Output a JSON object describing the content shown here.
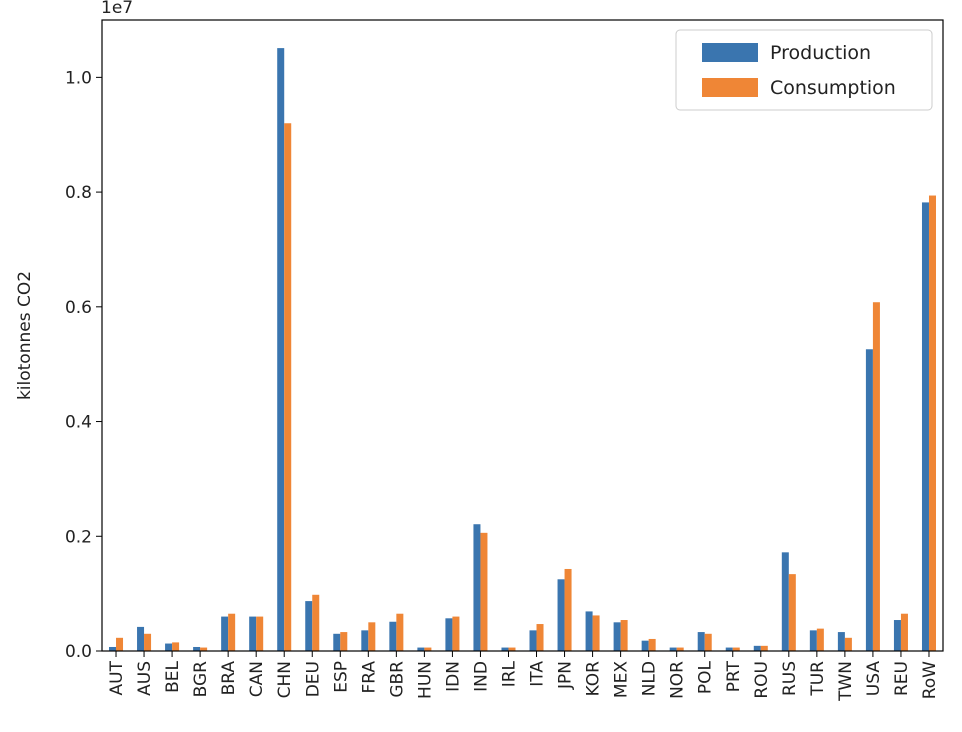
{
  "chart_data": {
    "type": "bar",
    "title": "",
    "xlabel": "",
    "ylabel": "kilotonnes CO2",
    "y_offset_label": "1e7",
    "ylim": [
      0,
      1.1
    ],
    "yticks": [
      "0.0",
      "0.2",
      "0.4",
      "0.6",
      "0.8",
      "1.0"
    ],
    "legend_position": "top-right",
    "grid": false,
    "categories": [
      "AUT",
      "AUS",
      "BEL",
      "BGR",
      "BRA",
      "CAN",
      "CHN",
      "DEU",
      "ESP",
      "FRA",
      "GBR",
      "HUN",
      "IDN",
      "IND",
      "IRL",
      "ITA",
      "JPN",
      "KOR",
      "MEX",
      "NLD",
      "NOR",
      "POL",
      "PRT",
      "ROU",
      "RUS",
      "TUR",
      "TWN",
      "USA",
      "REU",
      "RoW"
    ],
    "series": [
      {
        "name": "Production",
        "color": "#3a75af",
        "values": [
          0.007,
          0.042,
          0.013,
          0.007,
          0.06,
          0.06,
          1.051,
          0.087,
          0.03,
          0.036,
          0.051,
          0.006,
          0.057,
          0.221,
          0.006,
          0.036,
          0.125,
          0.069,
          0.05,
          0.018,
          0.006,
          0.033,
          0.006,
          0.009,
          0.172,
          0.036,
          0.033,
          0.526,
          0.054,
          0.782
        ]
      },
      {
        "name": "Consumption",
        "color": "#ef8636",
        "values": [
          0.023,
          0.03,
          0.015,
          0.006,
          0.065,
          0.06,
          0.92,
          0.098,
          0.033,
          0.05,
          0.065,
          0.006,
          0.06,
          0.206,
          0.006,
          0.047,
          0.143,
          0.062,
          0.054,
          0.021,
          0.006,
          0.03,
          0.006,
          0.009,
          0.134,
          0.039,
          0.023,
          0.608,
          0.065,
          0.794
        ]
      }
    ]
  }
}
